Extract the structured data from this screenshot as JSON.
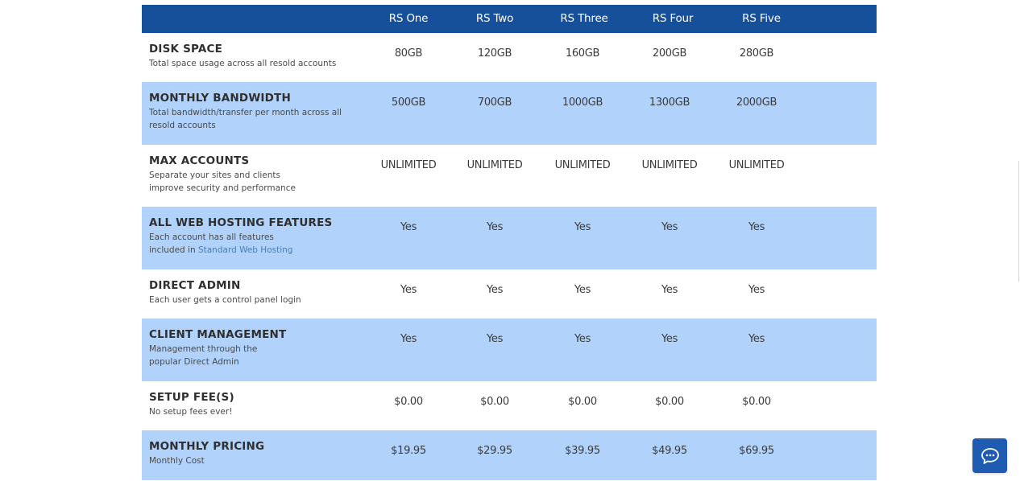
{
  "plans": [
    "RS One",
    "RS Two",
    "RS Three",
    "RS Four",
    "RS Five"
  ],
  "rows": [
    {
      "title": "DISK SPACE",
      "desc_lines": [
        "Total space usage across all resold accounts"
      ],
      "values": [
        "80GB",
        "120GB",
        "160GB",
        "200GB",
        "280GB"
      ]
    },
    {
      "title": "MONTHLY BANDWIDTH",
      "desc_lines": [
        "Total bandwidth/transfer per month across all",
        "resold accounts"
      ],
      "values": [
        "500GB",
        "700GB",
        "1000GB",
        "1300GB",
        "2000GB"
      ]
    },
    {
      "title": "MAX ACCOUNTS",
      "desc_lines": [
        "Separate your sites and clients",
        "improve security and performance"
      ],
      "values": [
        "UNLIMITED",
        "UNLIMITED",
        "UNLIMITED",
        "UNLIMITED",
        "UNLIMITED"
      ]
    },
    {
      "title": "ALL WEB HOSTING FEATURES",
      "desc_lines": [
        "Each account has all features"
      ],
      "desc_link_prefix": "included in ",
      "desc_link_text": "Standard Web Hosting",
      "values": [
        "Yes",
        "Yes",
        "Yes",
        "Yes",
        "Yes"
      ]
    },
    {
      "title": "DIRECT ADMIN",
      "desc_lines": [
        "Each user gets a control panel login"
      ],
      "values": [
        "Yes",
        "Yes",
        "Yes",
        "Yes",
        "Yes"
      ]
    },
    {
      "title": "CLIENT MANAGEMENT",
      "desc_lines": [
        "Management through the",
        "popular Direct Admin"
      ],
      "values": [
        "Yes",
        "Yes",
        "Yes",
        "Yes",
        "Yes"
      ]
    },
    {
      "title": "SETUP FEE(S)",
      "desc_lines": [
        "No setup fees ever!"
      ],
      "values": [
        "$0.00",
        "$0.00",
        "$0.00",
        "$0.00",
        "$0.00"
      ]
    },
    {
      "title": "MONTHLY PRICING",
      "desc_lines": [
        "Monthly Cost"
      ],
      "values": [
        "$19.95",
        "$29.95",
        "$39.95",
        "$49.95",
        "$69.95"
      ]
    }
  ],
  "chat": {
    "icon": "chat-bubble-icon"
  },
  "colors": {
    "header_bg": "#164f9a",
    "alt_row_bg": "#b0d2fb",
    "chat_bg": "#1f5bb0",
    "link": "#4a7cb8"
  }
}
